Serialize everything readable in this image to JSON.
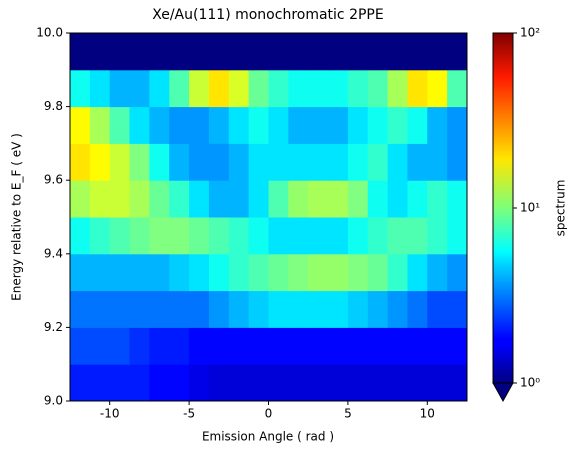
{
  "chart_data": {
    "type": "heatmap",
    "title": "Xe/Au(111) monochromatic 2PPE",
    "x_label": "Emission Angle ( rad )",
    "y_label": "Energy relative to E_F ( eV )",
    "colorbar_label": "spectrum",
    "colormap": "jet",
    "color_scale": "log",
    "xlim": [
      -12.5,
      12.5
    ],
    "ylim": [
      9.0,
      10.0
    ],
    "xticks": [
      -10,
      -5,
      0,
      5,
      10
    ],
    "yticks": [
      {
        "value": 9.0,
        "label": "9.0"
      },
      {
        "value": 9.2,
        "label": "9.2"
      },
      {
        "value": 9.4,
        "label": "9.4"
      },
      {
        "value": 9.6,
        "label": "9.6"
      },
      {
        "value": 9.8,
        "label": "9.8"
      },
      {
        "value": 10.0,
        "label": "10.0"
      }
    ],
    "clim": [
      1,
      100
    ],
    "cticks": [
      {
        "value": 1,
        "label": "10⁰"
      },
      {
        "value": 10,
        "label": "10¹"
      },
      {
        "value": 100,
        "label": "10²"
      }
    ],
    "xbins": [
      -12.5,
      -11.25,
      -10,
      -8.75,
      -7.5,
      -6.25,
      -5,
      -3.75,
      -2.5,
      -1.25,
      0,
      1.25,
      2.5,
      3.75,
      5,
      6.25,
      7.5,
      8.75,
      10,
      11.25,
      12.5
    ],
    "ybins": [
      9.0,
      9.1,
      9.2,
      9.3,
      9.4,
      9.5,
      9.6,
      9.7,
      9.8,
      9.9,
      10.0
    ],
    "z": [
      [
        2,
        2,
        2,
        2,
        1.8,
        1.8,
        1.6,
        1.5,
        1.5,
        1.5,
        1.5,
        1.5,
        1.5,
        1.5,
        1.5,
        1.5,
        1.5,
        1.5,
        1.5,
        1.5
      ],
      [
        2.5,
        2.5,
        2.5,
        2.2,
        2,
        2,
        1.8,
        1.8,
        1.8,
        1.8,
        1.8,
        1.8,
        1.8,
        1.8,
        1.8,
        1.8,
        1.8,
        1.8,
        1.8,
        1.8
      ],
      [
        3,
        3,
        3,
        3,
        3,
        3,
        3,
        3.5,
        4,
        4.5,
        5,
        5,
        5,
        5,
        4.5,
        4,
        3.5,
        3,
        2.5,
        2.5
      ],
      [
        4,
        4,
        4,
        4,
        4,
        4.5,
        5,
        6,
        7,
        8,
        9,
        10,
        11,
        11,
        10,
        9,
        7,
        5,
        4,
        3.5
      ],
      [
        6,
        7,
        8,
        9,
        10,
        10,
        9,
        8,
        7,
        6,
        5,
        5,
        5,
        5,
        6,
        7,
        8,
        8,
        7,
        6
      ],
      [
        12,
        14,
        14,
        12,
        9,
        7,
        5,
        4,
        4,
        5,
        8,
        11,
        12,
        12,
        10,
        6,
        5,
        6,
        7,
        6
      ],
      [
        20,
        18,
        14,
        10,
        6,
        4,
        3.5,
        3.5,
        4,
        5,
        5,
        5,
        5,
        5,
        6,
        7,
        5,
        4,
        4,
        3.5
      ],
      [
        18,
        12,
        8,
        5,
        4,
        3.5,
        3.5,
        4,
        5,
        6,
        5,
        4,
        4,
        4,
        5,
        6,
        7,
        6,
        4,
        3.5
      ],
      [
        6,
        5,
        4,
        4,
        5,
        8,
        14,
        20,
        15,
        9,
        7,
        6,
        6,
        6,
        7,
        8,
        12,
        20,
        18,
        8
      ],
      [
        1,
        1,
        1,
        1,
        1,
        1,
        1,
        1,
        1,
        1,
        1,
        1,
        1,
        1,
        1,
        1,
        1,
        1,
        1,
        1
      ]
    ]
  }
}
